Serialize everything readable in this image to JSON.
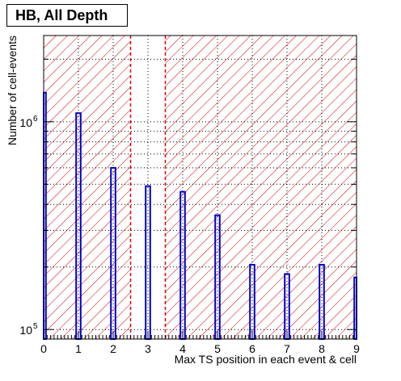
{
  "chart_data": {
    "type": "bar",
    "title": "HB, All Depth",
    "xlabel": "Max TS position in each event & cell",
    "ylabel": "Number of cell-events",
    "x_ticks": [
      "0",
      "1",
      "2",
      "3",
      "4",
      "5",
      "6",
      "7",
      "8",
      "9"
    ],
    "y_scale": "log",
    "y_tick_labels": {
      "1e5": [
        "10",
        "5"
      ],
      "1e6": [
        "10",
        "6"
      ]
    },
    "xlim": [
      0,
      9
    ],
    "ylim": [
      90000,
      2600000
    ],
    "grid": true,
    "categories": [
      0,
      1,
      2,
      3,
      4,
      5,
      6,
      7,
      8,
      9
    ],
    "values": [
      1380000,
      1100000,
      600000,
      490000,
      460000,
      355000,
      205000,
      185000,
      205000,
      178000
    ],
    "signal_window": [
      2.5,
      3.5
    ],
    "colors": {
      "bars": "#0000cc",
      "hatch": "#cc0000",
      "window_lines": "#dd0000"
    }
  }
}
